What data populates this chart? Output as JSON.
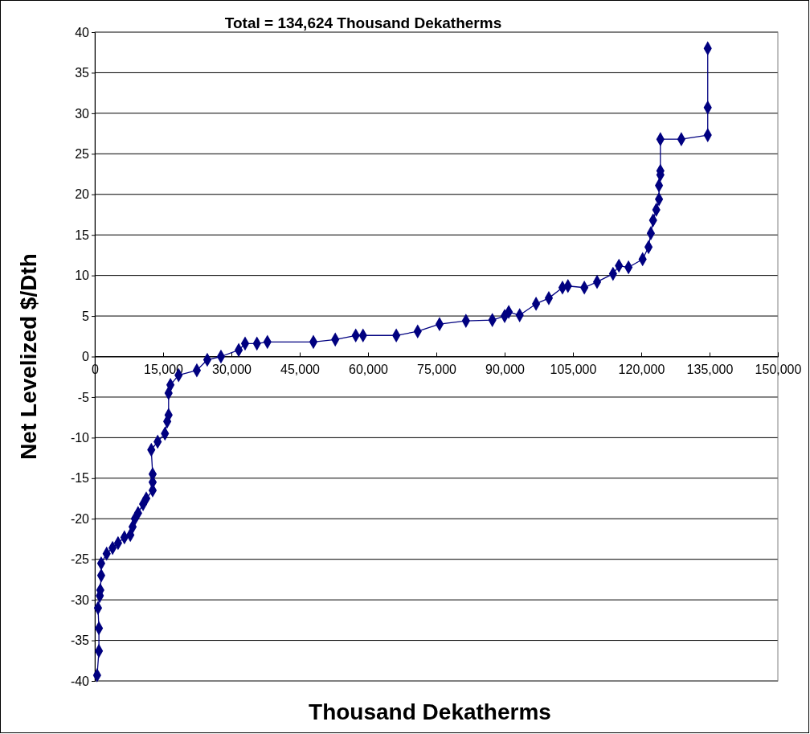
{
  "chart_data": {
    "type": "line",
    "title": "Total = 134,624 Thousand Dekatherms",
    "xlabel": "Thousand Dekatherms",
    "ylabel": "Net Levelized $/Dth",
    "x": [
      500,
      900,
      900,
      700,
      1100,
      1200,
      1400,
      1400,
      2600,
      3900,
      5100,
      6500,
      7800,
      8300,
      8800,
      9500,
      10600,
      11300,
      12700,
      12700,
      12700,
      12400,
      13800,
      15400,
      15900,
      16200,
      16200,
      16600,
      18400,
      22400,
      24700,
      27700,
      31600,
      33000,
      35600,
      37900,
      48000,
      52800,
      57300,
      58900,
      66200,
      70900,
      75700,
      81500,
      87300,
      90000,
      90900,
      93300,
      96900,
      99700,
      102700,
      103900,
      107500,
      110300,
      113800,
      115100,
      117200,
      120300,
      121600,
      122100,
      122600,
      123300,
      123900,
      123900,
      124200,
      124200,
      124200,
      128800,
      134600,
      134600,
      134600
    ],
    "series": [
      {
        "color": "#000080",
        "values": [
          -39.3,
          -36.3,
          -33.5,
          -31,
          -29.5,
          -28.8,
          -27,
          -25.5,
          -24.3,
          -23.6,
          -23,
          -22.3,
          -22,
          -21,
          -20,
          -19.3,
          -18.2,
          -17.5,
          -16.5,
          -15.5,
          -14.5,
          -11.5,
          -10.5,
          -9.5,
          -8,
          -7.2,
          -4.5,
          -3.5,
          -2.3,
          -1.7,
          -0.4,
          0,
          0.8,
          1.6,
          1.6,
          1.8,
          1.8,
          2.1,
          2.6,
          2.6,
          2.6,
          3.1,
          4,
          4.4,
          4.5,
          5,
          5.5,
          5.1,
          6.5,
          7.2,
          8.5,
          8.7,
          8.5,
          9.2,
          10.2,
          11.2,
          11,
          12,
          13.5,
          15.2,
          16.8,
          18.1,
          19.4,
          21.1,
          22.4,
          22.9,
          26.8,
          26.8,
          27.3,
          30.7,
          38
        ]
      }
    ],
    "xlim": [
      0,
      150000
    ],
    "xticks": [
      0,
      {
        "value": 15000,
        "label": "15,000"
      },
      {
        "value": 30000,
        "label": "30,000"
      },
      {
        "value": 45000,
        "label": "45,000"
      },
      {
        "value": 60000,
        "label": "60,000"
      },
      {
        "value": 75000,
        "label": "75,000"
      },
      {
        "value": 90000,
        "label": "90,000"
      },
      {
        "value": 105000,
        "label": "105,000"
      },
      {
        "value": 120000,
        "label": "120,000"
      },
      {
        "value": 135000,
        "label": "135,000"
      },
      {
        "value": 150000,
        "label": "150,000"
      }
    ],
    "ylim": [
      -40,
      40
    ],
    "yticks": [
      -40,
      -35,
      -30,
      -25,
      -20,
      -15,
      -10,
      -5,
      0,
      5,
      10,
      15,
      20,
      25,
      30,
      35,
      40
    ],
    "grid": "y",
    "marker": "diamond",
    "line_style": "solid"
  }
}
